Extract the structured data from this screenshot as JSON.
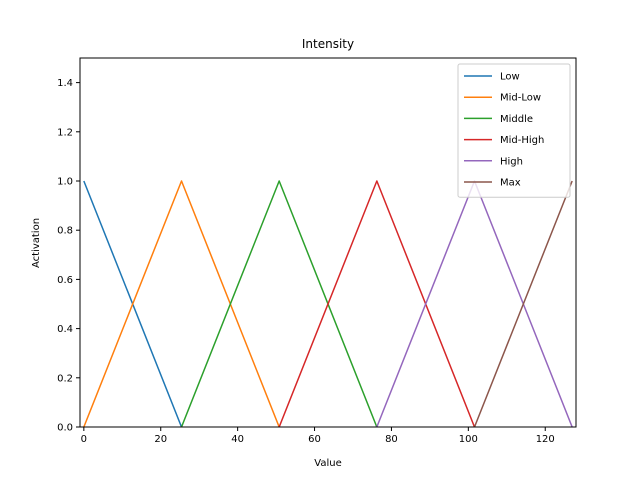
{
  "chart_data": {
    "type": "line",
    "title": "Intensity",
    "xlabel": "Value",
    "ylabel": "Activation",
    "xlim": [
      -1,
      128
    ],
    "ylim": [
      0,
      1.5
    ],
    "xticks": [
      0,
      20,
      40,
      60,
      80,
      100,
      120
    ],
    "yticks": [
      0.0,
      0.2,
      0.4,
      0.6,
      0.8,
      1.0,
      1.2,
      1.4
    ],
    "xtick_labels": [
      "0",
      "20",
      "40",
      "60",
      "80",
      "100",
      "120"
    ],
    "ytick_labels": [
      "0.0",
      "0.2",
      "0.4",
      "0.6",
      "0.8",
      "1.0",
      "1.2",
      "1.4"
    ],
    "grid": false,
    "legend_position": "top-right",
    "series": [
      {
        "name": "Low",
        "color": "#1f77b4",
        "x": [
          0,
          25.4
        ],
        "y": [
          1,
          0
        ]
      },
      {
        "name": "Mid-Low",
        "color": "#ff7f0e",
        "x": [
          0,
          25.4,
          50.8
        ],
        "y": [
          0,
          1,
          0
        ]
      },
      {
        "name": "Middle",
        "color": "#2ca02c",
        "x": [
          25.4,
          50.8,
          76.2
        ],
        "y": [
          0,
          1,
          0
        ]
      },
      {
        "name": "Mid-High",
        "color": "#d62728",
        "x": [
          50.8,
          76.2,
          101.6
        ],
        "y": [
          0,
          1,
          0
        ]
      },
      {
        "name": "High",
        "color": "#9467bd",
        "x": [
          76.2,
          101.6,
          127
        ],
        "y": [
          0,
          1,
          0
        ]
      },
      {
        "name": "Max",
        "color": "#8c564b",
        "x": [
          101.6,
          127
        ],
        "y": [
          0,
          1
        ]
      }
    ]
  }
}
